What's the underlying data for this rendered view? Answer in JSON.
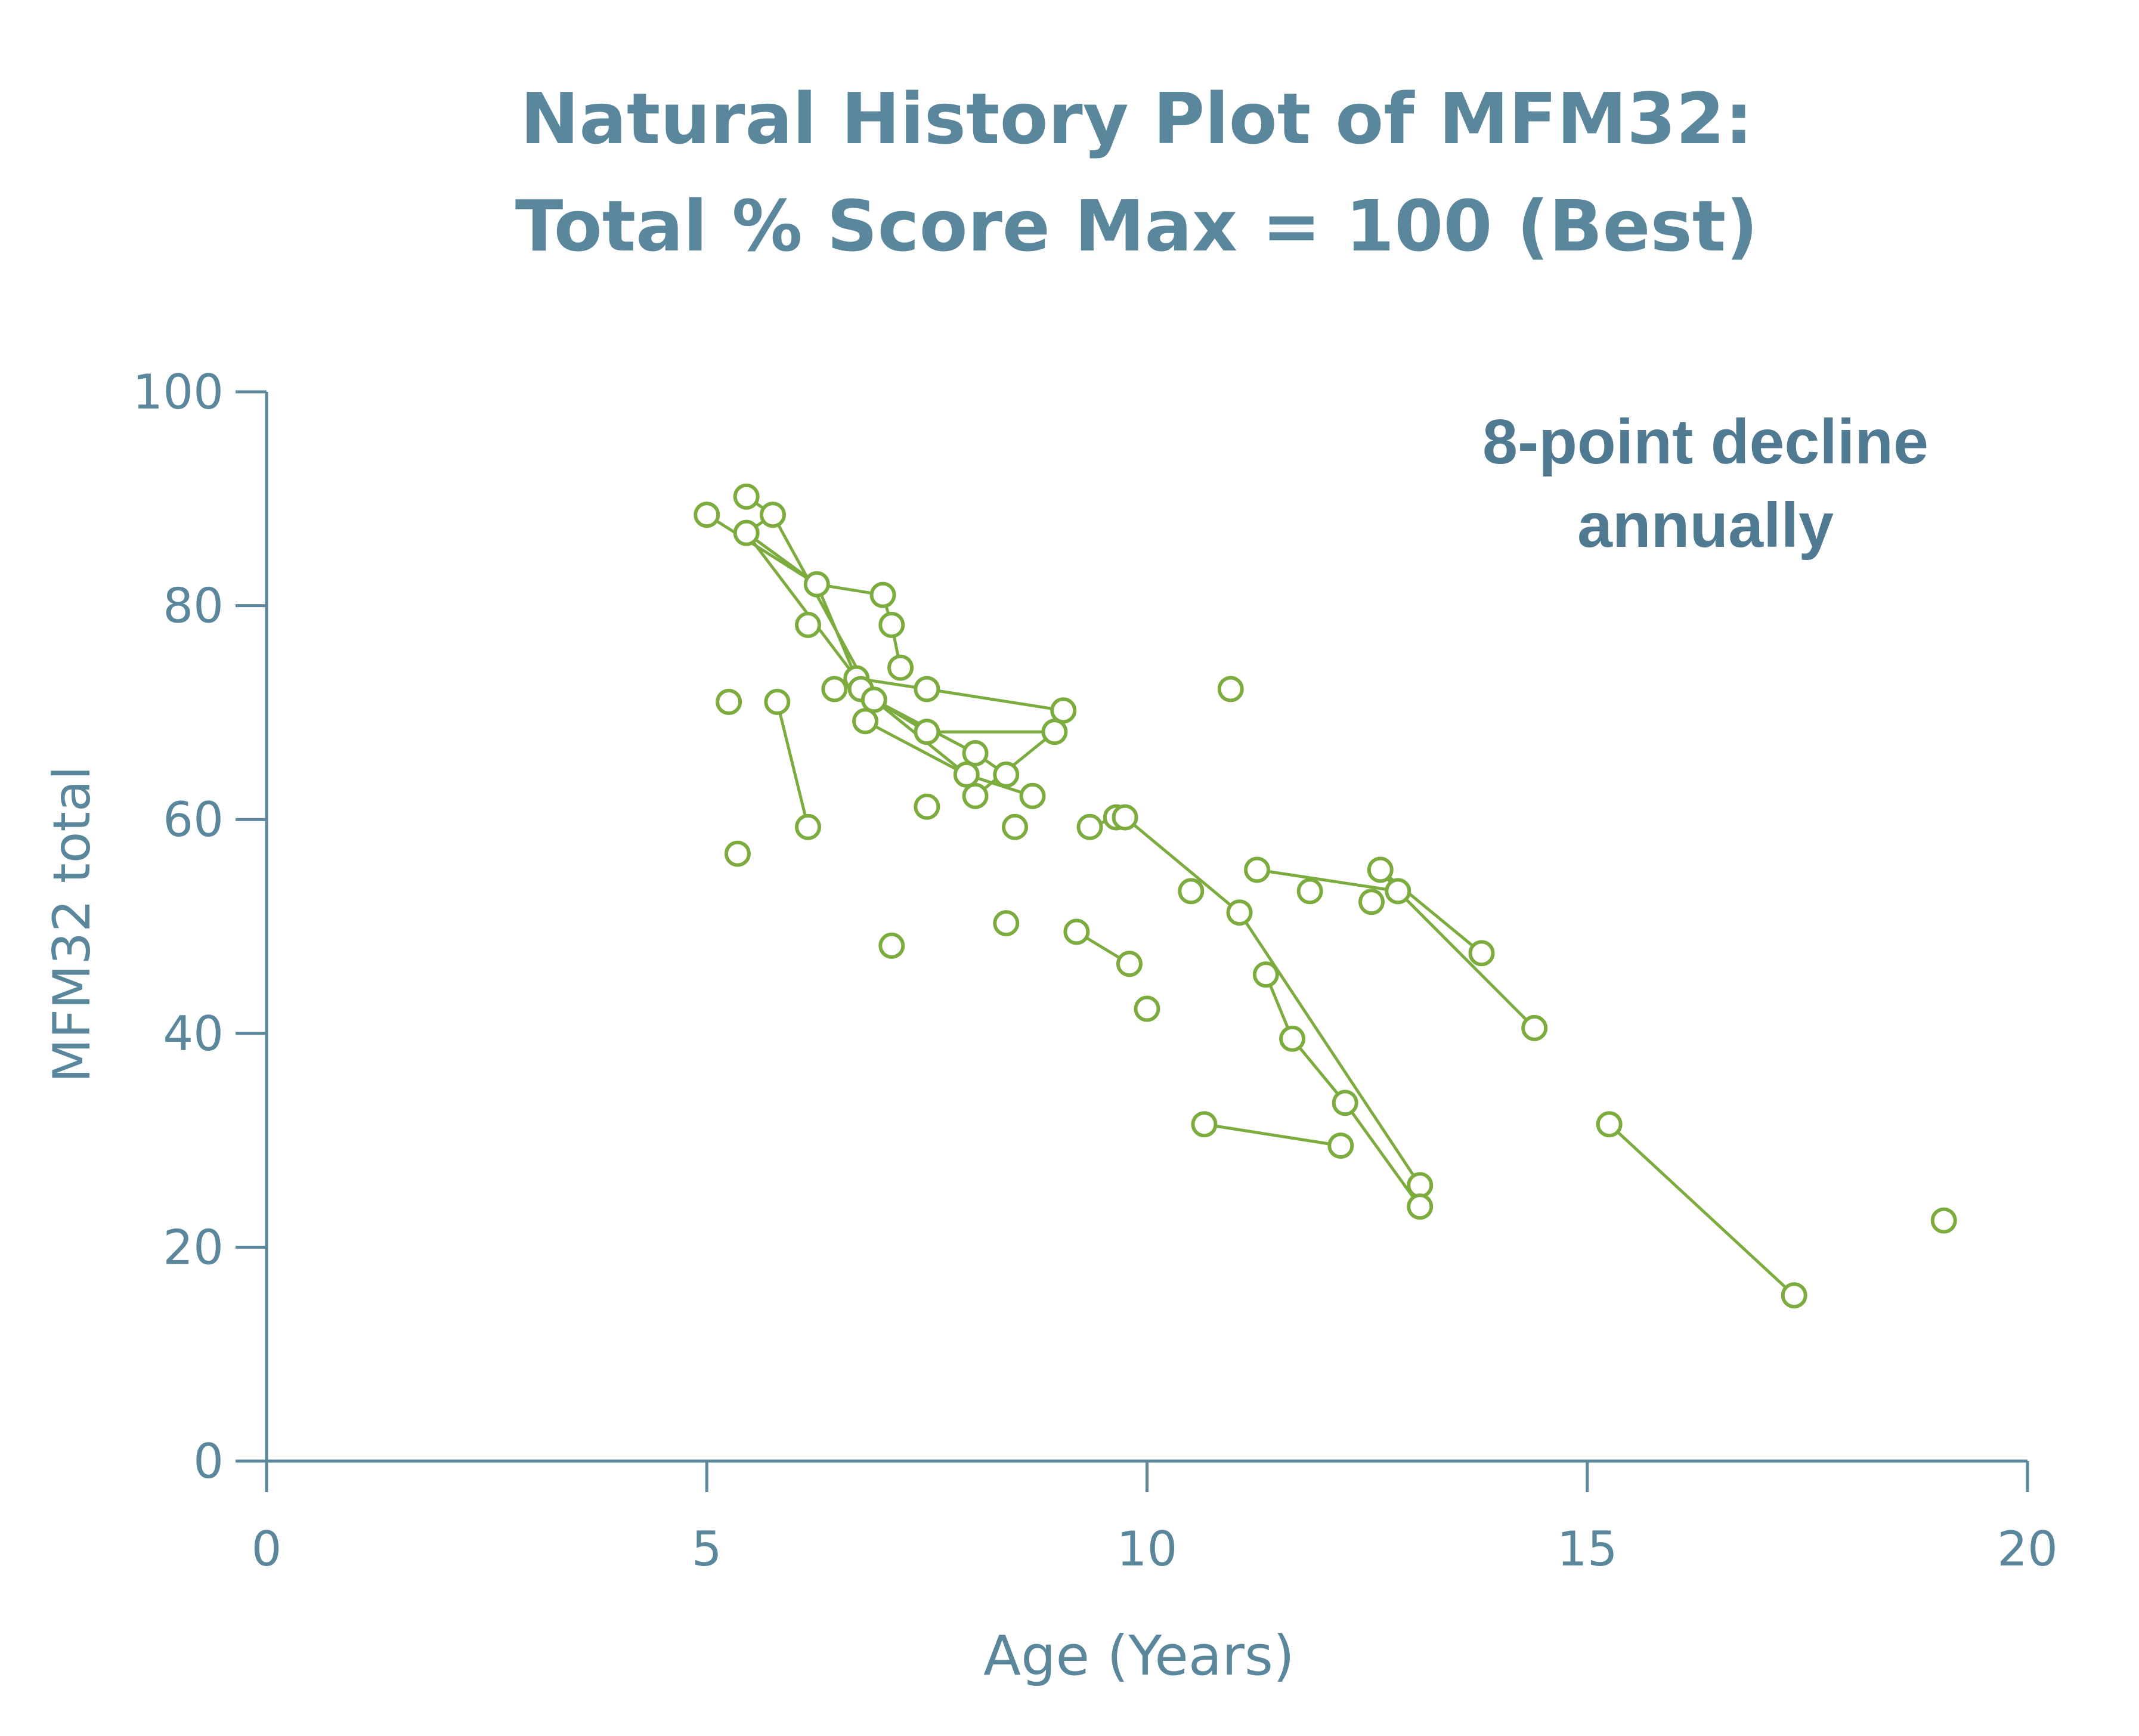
{
  "chart_data": {
    "type": "scatter",
    "title_lines": [
      "Natural History Plot of MFM32:",
      "Total % Score Max = 100 (Best)"
    ],
    "xlabel": "Age (Years)",
    "ylabel": "MFM32 total",
    "xlim": [
      0,
      20
    ],
    "ylim": [
      0,
      100
    ],
    "x_ticks": [
      0,
      5,
      10,
      15,
      20
    ],
    "y_ticks": [
      0,
      20,
      40,
      60,
      80,
      100
    ],
    "annotation_lines": [
      "8-point decline",
      "annually"
    ],
    "grid": false,
    "marker": "open-circle",
    "color": "#7cab3e",
    "points": [
      {
        "x": 5.0,
        "y": 88.5
      },
      {
        "x": 5.45,
        "y": 90.2
      },
      {
        "x": 5.45,
        "y": 86.8
      },
      {
        "x": 5.75,
        "y": 88.5
      },
      {
        "x": 6.25,
        "y": 82.0
      },
      {
        "x": 6.15,
        "y": 78.2
      },
      {
        "x": 7.0,
        "y": 81.0
      },
      {
        "x": 7.1,
        "y": 78.2
      },
      {
        "x": 7.2,
        "y": 74.2
      },
      {
        "x": 6.45,
        "y": 72.2
      },
      {
        "x": 6.7,
        "y": 73.2
      },
      {
        "x": 6.75,
        "y": 72.2
      },
      {
        "x": 6.9,
        "y": 71.2
      },
      {
        "x": 6.8,
        "y": 69.2
      },
      {
        "x": 7.5,
        "y": 72.2
      },
      {
        "x": 7.5,
        "y": 68.2
      },
      {
        "x": 5.25,
        "y": 71.0
      },
      {
        "x": 5.8,
        "y": 71.0
      },
      {
        "x": 6.15,
        "y": 59.3
      },
      {
        "x": 5.35,
        "y": 56.8
      },
      {
        "x": 7.5,
        "y": 61.2
      },
      {
        "x": 7.1,
        "y": 48.2
      },
      {
        "x": 7.95,
        "y": 64.2
      },
      {
        "x": 8.05,
        "y": 62.2
      },
      {
        "x": 8.05,
        "y": 66.2
      },
      {
        "x": 8.4,
        "y": 64.2
      },
      {
        "x": 8.7,
        "y": 62.2
      },
      {
        "x": 8.5,
        "y": 59.3
      },
      {
        "x": 8.4,
        "y": 50.3
      },
      {
        "x": 8.95,
        "y": 68.2
      },
      {
        "x": 9.05,
        "y": 70.2
      },
      {
        "x": 9.2,
        "y": 49.5
      },
      {
        "x": 9.35,
        "y": 59.3
      },
      {
        "x": 9.65,
        "y": 60.2
      },
      {
        "x": 9.75,
        "y": 60.2
      },
      {
        "x": 9.8,
        "y": 46.5
      },
      {
        "x": 10.0,
        "y": 42.3
      },
      {
        "x": 10.5,
        "y": 53.3
      },
      {
        "x": 10.95,
        "y": 72.2
      },
      {
        "x": 11.05,
        "y": 51.3
      },
      {
        "x": 11.25,
        "y": 55.3
      },
      {
        "x": 11.35,
        "y": 45.5
      },
      {
        "x": 11.65,
        "y": 39.5
      },
      {
        "x": 10.65,
        "y": 31.5
      },
      {
        "x": 11.85,
        "y": 53.3
      },
      {
        "x": 12.2,
        "y": 29.5
      },
      {
        "x": 12.25,
        "y": 33.5
      },
      {
        "x": 12.55,
        "y": 52.3
      },
      {
        "x": 12.65,
        "y": 55.3
      },
      {
        "x": 12.85,
        "y": 53.3
      },
      {
        "x": 13.1,
        "y": 25.8
      },
      {
        "x": 13.1,
        "y": 23.8
      },
      {
        "x": 13.8,
        "y": 47.5
      },
      {
        "x": 14.4,
        "y": 40.5
      },
      {
        "x": 15.25,
        "y": 31.5
      },
      {
        "x": 17.35,
        "y": 15.5
      },
      {
        "x": 19.05,
        "y": 22.5
      }
    ],
    "trajectories": [
      [
        {
          "x": 5.0,
          "y": 88.5
        },
        {
          "x": 6.25,
          "y": 82.0
        },
        {
          "x": 7.0,
          "y": 81.0
        },
        {
          "x": 7.1,
          "y": 78.2
        },
        {
          "x": 7.2,
          "y": 74.2
        }
      ],
      [
        {
          "x": 5.45,
          "y": 90.2
        },
        {
          "x": 5.75,
          "y": 88.5
        },
        {
          "x": 5.45,
          "y": 86.8
        },
        {
          "x": 6.25,
          "y": 82.0
        },
        {
          "x": 6.75,
          "y": 72.2
        },
        {
          "x": 7.95,
          "y": 64.2
        }
      ],
      [
        {
          "x": 5.45,
          "y": 86.8
        },
        {
          "x": 6.7,
          "y": 73.2
        },
        {
          "x": 6.9,
          "y": 71.2
        },
        {
          "x": 7.5,
          "y": 68.2
        },
        {
          "x": 8.95,
          "y": 68.2
        },
        {
          "x": 8.05,
          "y": 62.2
        }
      ],
      [
        {
          "x": 5.75,
          "y": 88.5
        },
        {
          "x": 6.9,
          "y": 71.2
        },
        {
          "x": 8.05,
          "y": 66.2
        },
        {
          "x": 8.4,
          "y": 64.2
        }
      ],
      [
        {
          "x": 6.45,
          "y": 72.2
        },
        {
          "x": 6.7,
          "y": 73.2
        },
        {
          "x": 7.5,
          "y": 72.2
        },
        {
          "x": 9.05,
          "y": 70.2
        }
      ],
      [
        {
          "x": 6.8,
          "y": 69.2
        },
        {
          "x": 7.95,
          "y": 64.2
        },
        {
          "x": 8.7,
          "y": 62.2
        }
      ],
      [
        {
          "x": 5.8,
          "y": 71.0
        },
        {
          "x": 6.15,
          "y": 59.3
        }
      ],
      [
        {
          "x": 9.35,
          "y": 59.3
        },
        {
          "x": 9.65,
          "y": 60.2
        },
        {
          "x": 9.75,
          "y": 60.2
        },
        {
          "x": 11.05,
          "y": 51.3
        },
        {
          "x": 13.1,
          "y": 25.8
        }
      ],
      [
        {
          "x": 11.35,
          "y": 45.5
        },
        {
          "x": 11.65,
          "y": 39.5
        },
        {
          "x": 12.25,
          "y": 33.5
        },
        {
          "x": 13.1,
          "y": 23.8
        }
      ],
      [
        {
          "x": 9.2,
          "y": 49.5
        },
        {
          "x": 9.8,
          "y": 46.5
        }
      ],
      [
        {
          "x": 10.65,
          "y": 31.5
        },
        {
          "x": 12.2,
          "y": 29.5
        }
      ],
      [
        {
          "x": 11.25,
          "y": 55.3
        },
        {
          "x": 12.85,
          "y": 53.3
        },
        {
          "x": 12.65,
          "y": 55.3
        },
        {
          "x": 13.8,
          "y": 47.5
        }
      ],
      [
        {
          "x": 12.85,
          "y": 53.3
        },
        {
          "x": 14.4,
          "y": 40.5
        }
      ],
      [
        {
          "x": 15.25,
          "y": 31.5
        },
        {
          "x": 17.35,
          "y": 15.5
        }
      ]
    ]
  }
}
